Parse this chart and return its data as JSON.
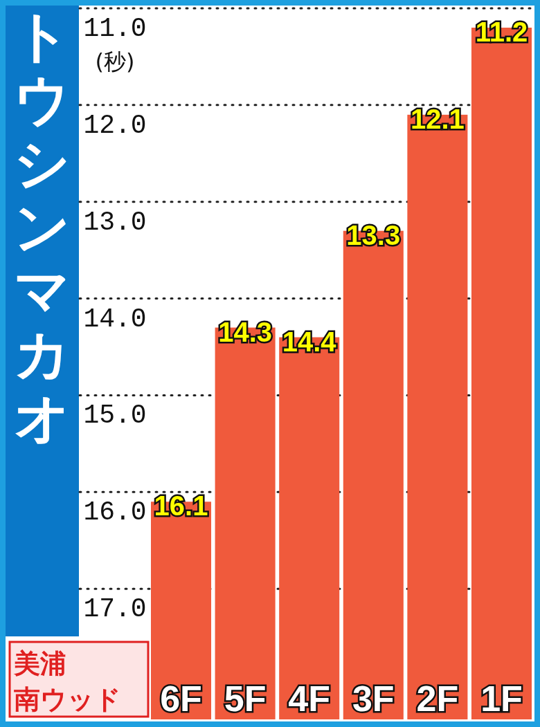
{
  "chart_data": {
    "type": "bar",
    "title": "トウシンマカオ",
    "ylabel": "(秒)",
    "annotations": [
      "美浦南ウッド"
    ],
    "categories": [
      "6F",
      "5F",
      "4F",
      "3F",
      "2F",
      "1F"
    ],
    "base": [
      18.35,
      18.35,
      18.35,
      18.35,
      18.35,
      18.35
    ],
    "values": [
      -2.25,
      -4.05,
      -3.95,
      -5.05,
      -6.25,
      -7.15
    ],
    "value_labels": [
      "16.1",
      "14.3",
      "14.4",
      "13.3",
      "12.1",
      "11.2"
    ],
    "color": "#f05a3c",
    "ylim": [
      18.35,
      11.0
    ],
    "yticks": [
      {
        "value": 11,
        "label": "11.0"
      },
      {
        "value": 12,
        "label": "12.0"
      },
      {
        "value": 13,
        "label": "13.0"
      },
      {
        "value": 14,
        "label": "14.0"
      },
      {
        "value": 15,
        "label": "15.0"
      },
      {
        "value": 16,
        "label": "16.0"
      },
      {
        "value": 17,
        "label": "17.0"
      }
    ],
    "grid": "y"
  }
}
